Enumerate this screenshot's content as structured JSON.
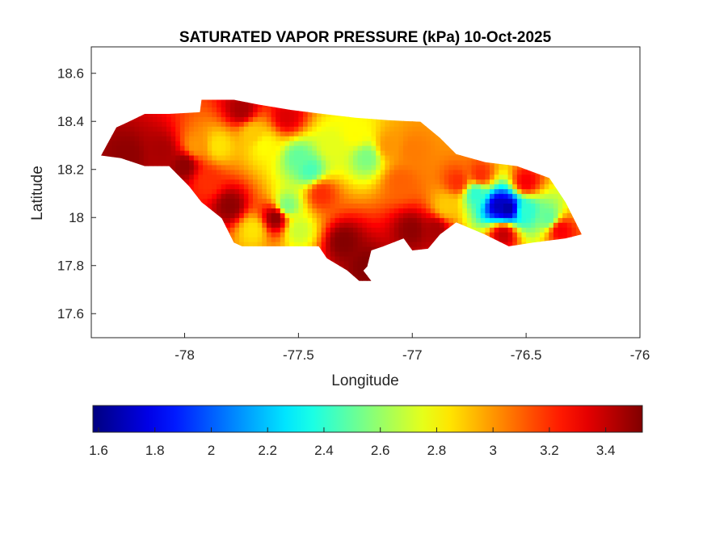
{
  "chart_data": {
    "type": "heatmap",
    "title": "SATURATED VAPOR PRESSURE (kPa) 10-Oct-2025",
    "xlabel": "Longitude",
    "ylabel": "Latitude",
    "xlim": [
      -78.41,
      -76
    ],
    "ylim": [
      17.5,
      18.71
    ],
    "xticks": [
      -78,
      -77.5,
      -77,
      -76.5,
      -76
    ],
    "xtick_labels": [
      "-78",
      "-77.5",
      "-77",
      "-76.5",
      "-76"
    ],
    "yticks": [
      17.6,
      17.8,
      18,
      18.2,
      18.4,
      18.6
    ],
    "ytick_labels": [
      "17.6",
      "17.8",
      "18",
      "18.2",
      "18.4",
      "18.6"
    ],
    "grid": false,
    "colormap": "jet",
    "clim": [
      1.58,
      3.53
    ],
    "colorbar": {
      "location": "bottom",
      "ticks": [
        1.6,
        1.8,
        2,
        2.2,
        2.4,
        2.6,
        2.8,
        3,
        3.2,
        3.4
      ],
      "tick_labels": [
        "1.6",
        "1.8",
        "2",
        "2.2",
        "2.4",
        "2.6",
        "2.8",
        "3",
        "3.2",
        "3.4"
      ]
    },
    "outline_lonlat": [
      [
        -78.367,
        18.258
      ],
      [
        -78.3,
        18.375
      ],
      [
        -78.246,
        18.398
      ],
      [
        -78.175,
        18.431
      ],
      [
        -78.068,
        18.431
      ],
      [
        -77.933,
        18.438
      ],
      [
        -77.926,
        18.49
      ],
      [
        -77.784,
        18.49
      ],
      [
        -77.677,
        18.47
      ],
      [
        -77.535,
        18.448
      ],
      [
        -77.393,
        18.431
      ],
      [
        -77.25,
        18.415
      ],
      [
        -77.107,
        18.405
      ],
      [
        -76.964,
        18.398
      ],
      [
        -76.878,
        18.331
      ],
      [
        -76.807,
        18.264
      ],
      [
        -76.68,
        18.23
      ],
      [
        -76.54,
        18.214
      ],
      [
        -76.398,
        18.164
      ],
      [
        -76.327,
        18.064
      ],
      [
        -76.256,
        17.93
      ],
      [
        -76.327,
        17.913
      ],
      [
        -76.469,
        17.896
      ],
      [
        -76.576,
        17.88
      ],
      [
        -76.682,
        17.93
      ],
      [
        -76.807,
        17.98
      ],
      [
        -76.878,
        17.93
      ],
      [
        -76.931,
        17.87
      ],
      [
        -77.0,
        17.863
      ],
      [
        -77.038,
        17.913
      ],
      [
        -77.127,
        17.88
      ],
      [
        -77.18,
        17.863
      ],
      [
        -77.198,
        17.796
      ],
      [
        -77.215,
        17.779
      ],
      [
        -77.18,
        17.736
      ],
      [
        -77.233,
        17.736
      ],
      [
        -77.286,
        17.78
      ],
      [
        -77.375,
        17.83
      ],
      [
        -77.411,
        17.88
      ],
      [
        -77.748,
        17.88
      ],
      [
        -77.784,
        17.896
      ],
      [
        -77.837,
        17.997
      ],
      [
        -77.926,
        18.064
      ],
      [
        -77.98,
        18.13
      ],
      [
        -78.068,
        18.214
      ],
      [
        -78.175,
        18.214
      ],
      [
        -78.28,
        18.247
      ]
    ],
    "samples_lon_lat_value": [
      [
        -78.25,
        18.26,
        3.5
      ],
      [
        -78.1,
        18.28,
        3.45
      ],
      [
        -78.0,
        18.22,
        3.5
      ],
      [
        -77.95,
        18.3,
        3.0
      ],
      [
        -77.85,
        18.3,
        2.85
      ],
      [
        -77.9,
        18.15,
        3.2
      ],
      [
        -77.7,
        18.35,
        2.9
      ],
      [
        -77.65,
        18.3,
        2.8
      ],
      [
        -77.5,
        18.25,
        2.5
      ],
      [
        -77.45,
        18.2,
        2.45
      ],
      [
        -77.35,
        18.3,
        2.75
      ],
      [
        -77.25,
        18.35,
        2.8
      ],
      [
        -77.2,
        18.25,
        2.55
      ],
      [
        -77.1,
        18.3,
        3.0
      ],
      [
        -77.0,
        18.28,
        3.05
      ],
      [
        -77.05,
        18.15,
        3.1
      ],
      [
        -77.4,
        18.1,
        3.2
      ],
      [
        -77.55,
        18.05,
        2.55
      ],
      [
        -77.5,
        17.95,
        2.7
      ],
      [
        -77.7,
        17.95,
        2.85
      ],
      [
        -77.8,
        18.05,
        3.5
      ],
      [
        -77.6,
        18.0,
        3.5
      ],
      [
        -77.3,
        17.9,
        3.52
      ],
      [
        -77.2,
        17.8,
        3.52
      ],
      [
        -77.0,
        17.95,
        3.5
      ],
      [
        -76.9,
        17.95,
        3.45
      ],
      [
        -77.75,
        18.45,
        3.45
      ],
      [
        -77.55,
        18.42,
        3.35
      ],
      [
        -76.8,
        18.15,
        3.2
      ],
      [
        -76.85,
        18.05,
        2.9
      ],
      [
        -76.72,
        18.1,
        2.4
      ],
      [
        -76.62,
        18.05,
        1.7
      ],
      [
        -76.58,
        18.04,
        1.65
      ],
      [
        -76.5,
        18.03,
        2.4
      ],
      [
        -76.4,
        18.0,
        2.5
      ],
      [
        -76.35,
        17.95,
        3.3
      ],
      [
        -76.6,
        17.93,
        3.4
      ],
      [
        -76.7,
        18.18,
        3.2
      ],
      [
        -76.5,
        18.15,
        3.3
      ]
    ]
  }
}
